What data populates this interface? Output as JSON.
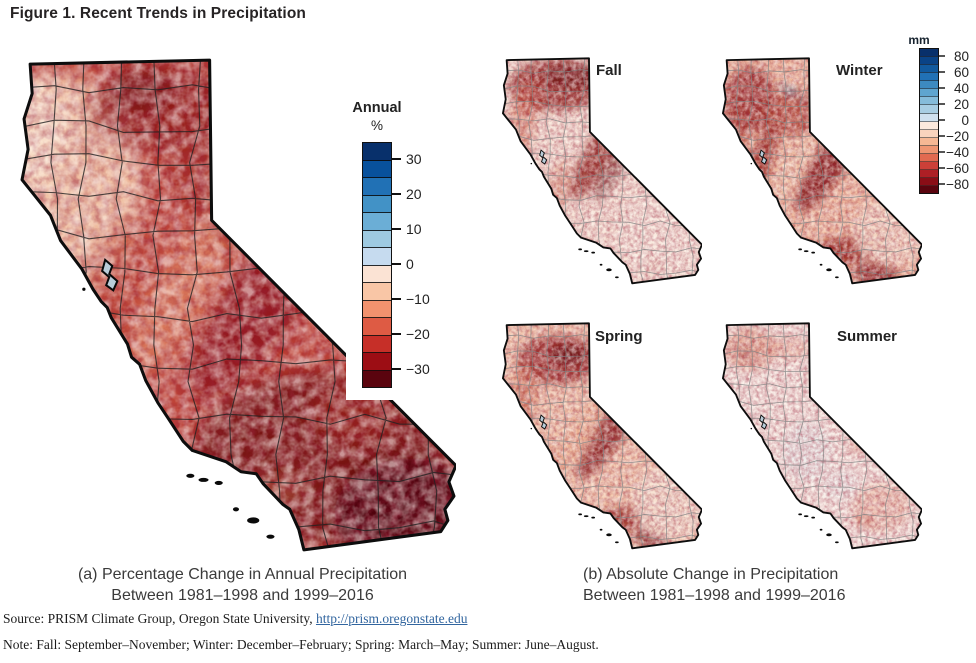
{
  "figure": {
    "title": "Figure 1. Recent Trends in Precipitation"
  },
  "panel_a": {
    "caption_line1": "(a) Percentage Change in Annual Precipitation",
    "caption_line2": "Between 1981–1998 and 1999–2016",
    "legend_title": "Annual",
    "legend_units": "%"
  },
  "panel_b": {
    "caption_line1": "(b) Absolute Change in Precipitation",
    "caption_line2": "Between 1981–1998 and 1999–2016",
    "legend_units": "mm",
    "maps": [
      {
        "label": "Fall"
      },
      {
        "label": "Winter"
      },
      {
        "label": "Spring"
      },
      {
        "label": "Summer"
      }
    ]
  },
  "footer": {
    "source_prefix": "Source: PRISM Climate Group, Oregon State University, ",
    "source_link": "http://prism.oregonstate.edu",
    "note": "Note: Fall: September–November; Winter: December–February; Spring: March–May; Summer: June–August."
  },
  "colors": {
    "link": "#31659f",
    "title_text": "#262324",
    "caption_text": "#3b3b3b",
    "map_outline": "#0d0d0d",
    "county_line_main": "#222222",
    "county_line_small": "#858585"
  },
  "chart_data": [
    {
      "type": "heatmap",
      "subtype": "choropleth_map",
      "panel": "a",
      "region": "California",
      "title": "Annual",
      "units": "%",
      "caption": "(a) Percentage Change in Annual Precipitation Between 1981–1998 and 1999–2016",
      "colorbar": {
        "orientation": "vertical",
        "tick_labels": [
          "30",
          "20",
          "10",
          "0",
          "−10",
          "−20",
          "−30"
        ],
        "tick_values": [
          30,
          20,
          10,
          0,
          -10,
          -20,
          -30
        ],
        "domain": [
          35,
          -35
        ],
        "n_segments": 14,
        "colors": [
          "#08306b",
          "#08519c",
          "#2171b5",
          "#4292c6",
          "#6baed6",
          "#9ecae1",
          "#c6dbef",
          "#fbe3d4",
          "#f9c6a6",
          "#f1926e",
          "#de5b44",
          "#c62f28",
          "#9c0d14",
          "#5a040e"
        ]
      },
      "summary": "Nearly the entire state shows decreases in annual precipitation between 1981–1998 and 1999–2016; declines exceed 30% across much of southern and southeastern California, are 10–30% over the Sierra Nevada, Central Valley and northeast, and are mildest (0–10%) along the far northwest coast."
    },
    {
      "type": "heatmap",
      "subtype": "choropleth_map_grid",
      "panel": "b",
      "region": "California",
      "units": "mm",
      "caption": "(b) Absolute Change in Precipitation Between 1981–1998 and 1999–2016",
      "colorbar": {
        "orientation": "vertical",
        "tick_labels": [
          "80",
          "60",
          "40",
          "20",
          "0",
          "−20",
          "−40",
          "−60",
          "−80"
        ],
        "tick_values": [
          80,
          60,
          40,
          20,
          0,
          -20,
          -40,
          -60,
          -80
        ],
        "domain": [
          90,
          -90
        ],
        "n_segments": 18,
        "colors": [
          "#08306b",
          "#0a4386",
          "#125a9e",
          "#2171b5",
          "#3d8ac0",
          "#5fa5cf",
          "#85bcda",
          "#a8cee3",
          "#cfe1ef",
          "#fbe9dd",
          "#f9d4bd",
          "#f6b894",
          "#ef9672",
          "#e26a50",
          "#cc4038",
          "#ad1f25",
          "#8a0d16",
          "#5a040e"
        ]
      },
      "maps": [
        {
          "label": "Fall",
          "summary": "Decreases up to about 80 mm concentrated in the northern mountains and along the Sierra Nevada; little change in the southeastern deserts."
        },
        {
          "label": "Winter",
          "summary": "Largest decreases (−60 to −80 mm) across the Coast Ranges, Sierra Nevada and southern mountains; isolated small increases in the far northeast."
        },
        {
          "label": "Spring",
          "summary": "Strong decreases in the far north, along the Sierra Nevada and over the southern coastal ranges; milder decreases elsewhere."
        },
        {
          "label": "Summer",
          "summary": "Little change statewide; scattered small decreases in the northwest and the southeastern deserts."
        }
      ]
    }
  ]
}
